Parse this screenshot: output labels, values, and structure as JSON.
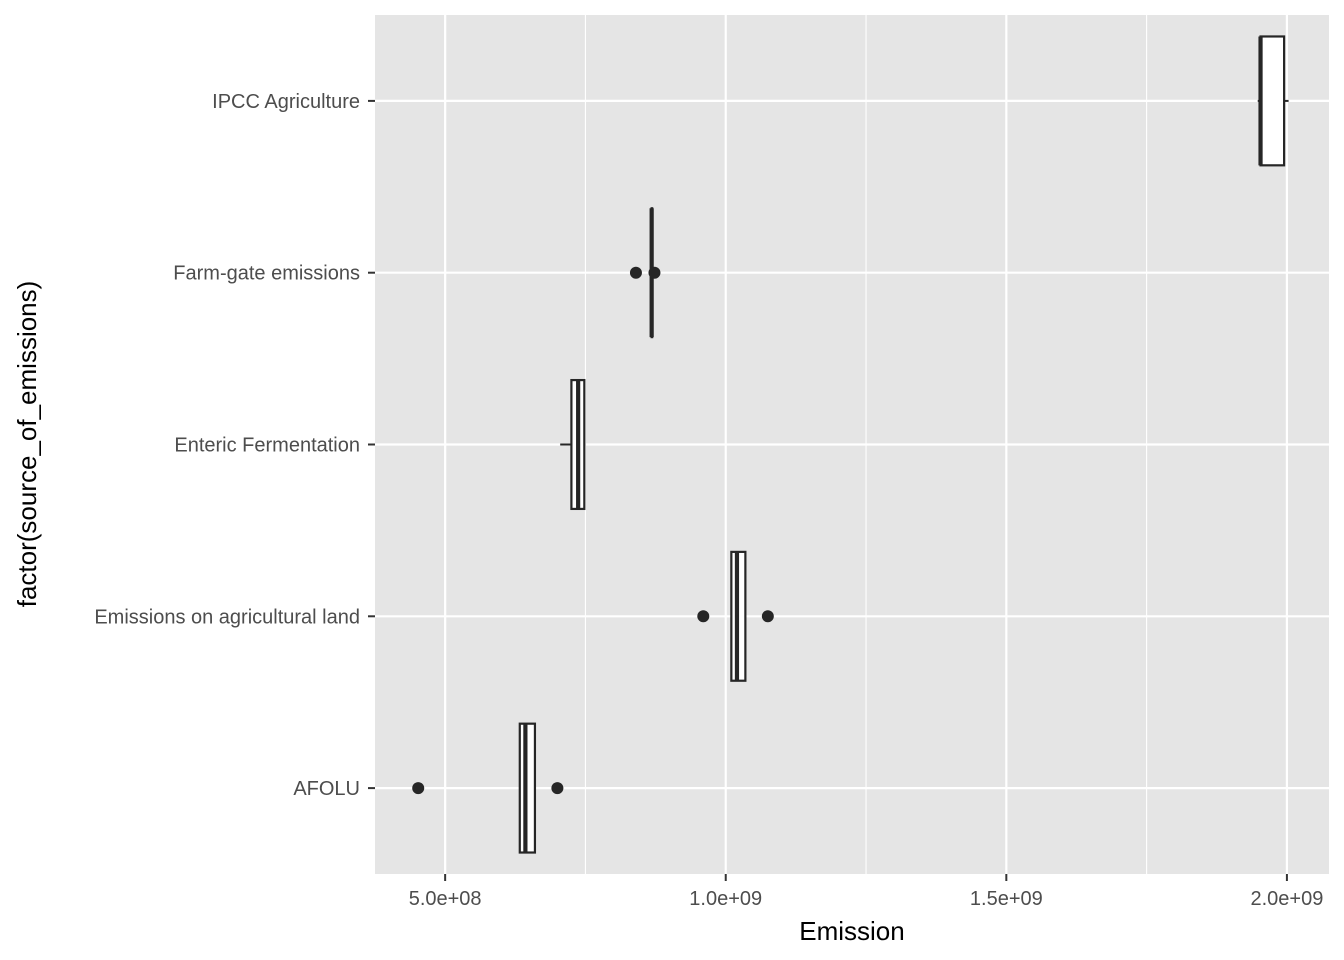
{
  "chart_data": {
    "type": "boxplot",
    "orientation": "horizontal",
    "xlabel": "Emission",
    "ylabel": "factor(source_of_emissions)",
    "xlim": [
      370000000,
      1980000000
    ],
    "x_ticks": [
      {
        "value": 500000000,
        "label": "5.0e+08"
      },
      {
        "value": 1000000000,
        "label": "1.0e+09"
      },
      {
        "value": 1500000000,
        "label": "1.5e+09"
      },
      {
        "value": 2000000000,
        "label": "2.0e+09"
      }
    ],
    "x_minor_ticks": [
      750000000,
      1250000000,
      1750000000
    ],
    "categories": [
      "AFOLU",
      "Emissions on agricultural land",
      "Enteric Fermentation",
      "Farm-gate emissions",
      "IPCC Agriculture"
    ],
    "boxes": [
      {
        "category": "AFOLU",
        "whisker_low": 633000000,
        "q1": 633000000,
        "median": 643000000,
        "q3": 660000000,
        "whisker_high": 660000000,
        "outliers": [
          452000000,
          700000000
        ]
      },
      {
        "category": "Emissions on agricultural land",
        "whisker_low": 1010000000,
        "q1": 1010000000,
        "median": 1020000000,
        "q3": 1035000000,
        "whisker_high": 1035000000,
        "outliers": [
          960000000,
          1075000000
        ]
      },
      {
        "category": "Enteric Fermentation",
        "whisker_low": 705000000,
        "q1": 725000000,
        "median": 737000000,
        "q3": 748000000,
        "whisker_high": 748000000,
        "outliers": []
      },
      {
        "category": "Farm-gate emissions",
        "whisker_low": 868000000,
        "q1": 868000000,
        "median": 868000000,
        "q3": 868000000,
        "whisker_high": 868000000,
        "outliers": [
          840000000,
          873000000
        ]
      },
      {
        "category": "IPCC Agriculture",
        "whisker_low": 1948000000,
        "q1": 1953000000,
        "median": 1953000000,
        "q3": 1995000000,
        "whisker_high": 2003000000,
        "outliers": []
      }
    ],
    "grid": true,
    "legend": "none",
    "colors": {
      "panel": "#e5e5e5",
      "grid_major": "#ffffff",
      "box_fill": "#ffffff",
      "box_stroke": "#262626",
      "tick_text": "#4d4d4d",
      "title_text": "#000000"
    }
  }
}
